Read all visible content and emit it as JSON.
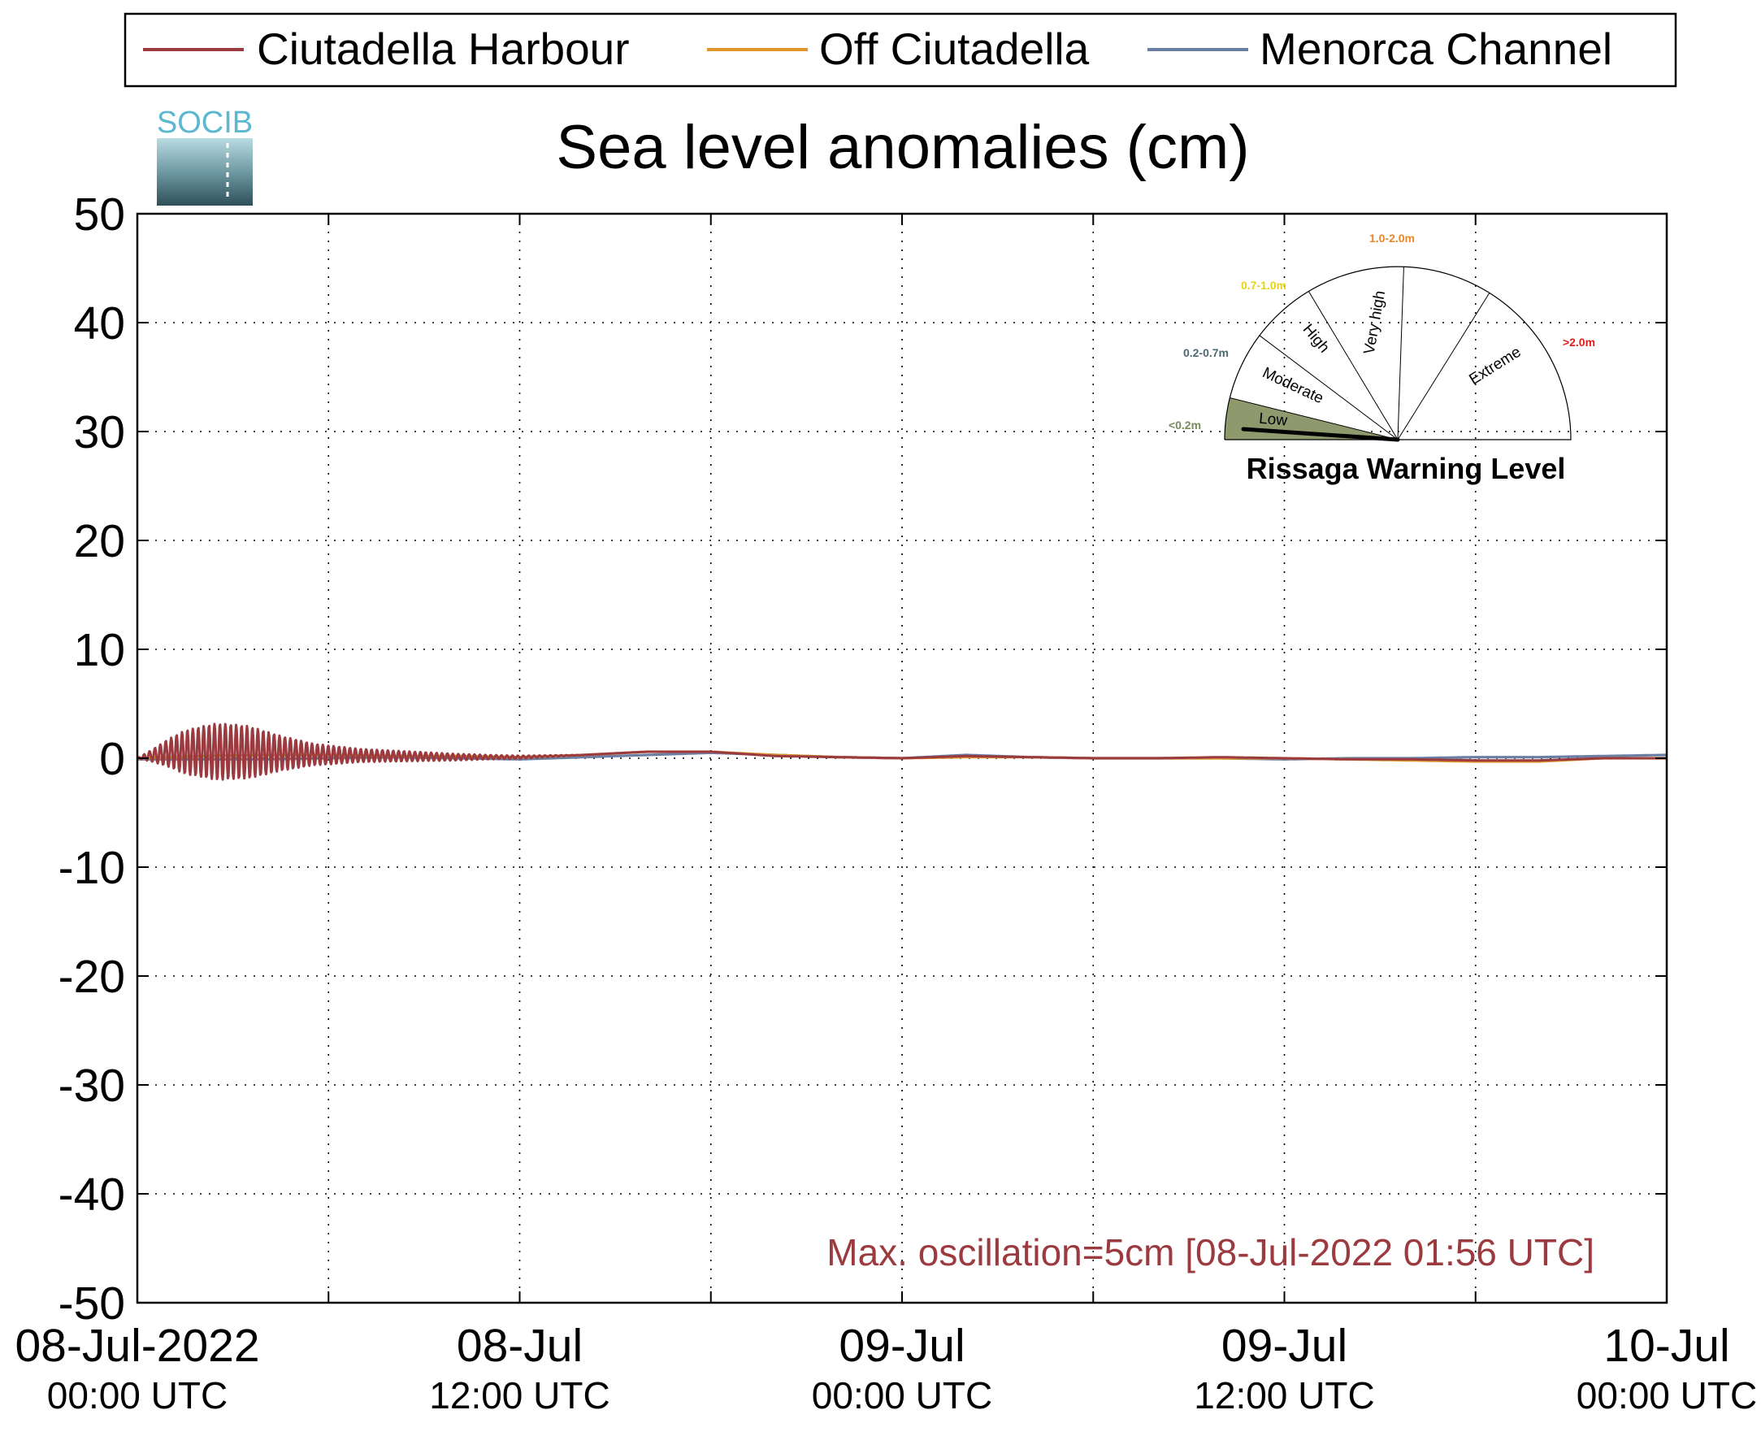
{
  "chart_data": {
    "type": "line",
    "title": "Sea level anomalies (cm)",
    "xlabel": "",
    "ylabel": "",
    "ylim": [
      -50,
      50
    ],
    "y_ticks": [
      50,
      40,
      30,
      20,
      10,
      0,
      -10,
      -20,
      -30,
      -40,
      -50
    ],
    "x_range": [
      "2022-07-08 00:00",
      "2022-07-10 00:00"
    ],
    "x_tick_labels": [
      {
        "date": "08-Jul-2022",
        "time": "00:00 UTC"
      },
      {
        "date": "08-Jul",
        "time": "12:00 UTC"
      },
      {
        "date": "09-Jul",
        "time": "00:00 UTC"
      },
      {
        "date": "09-Jul",
        "time": "12:00 UTC"
      },
      {
        "date": "10-Jul",
        "time": "00:00 UTC"
      }
    ],
    "grid": true,
    "legend_position": "top",
    "series": [
      {
        "name": "Ciutadella Harbour",
        "color": "#9b3a3f",
        "x_hours": [
          0,
          1,
          2,
          3,
          4,
          5,
          6,
          8,
          10,
          12,
          14,
          16,
          18,
          20,
          22,
          24,
          26,
          28,
          30,
          32,
          34,
          36,
          38,
          40,
          42,
          44,
          46,
          48
        ],
        "y": [
          0.0,
          0.5,
          0.6,
          0.6,
          0.5,
          0.4,
          0.3,
          0.2,
          0.1,
          0.1,
          0.3,
          0.6,
          0.6,
          0.2,
          0.1,
          0.0,
          0.2,
          0.1,
          0.0,
          0.0,
          0.1,
          0.0,
          -0.1,
          -0.1,
          -0.2,
          -0.2,
          0.0,
          0.0
        ],
        "oscillation_envelope": [
          {
            "hour": 0.5,
            "amp": 0.6
          },
          {
            "hour": 1.5,
            "amp": 2.0
          },
          {
            "hour": 2.5,
            "amp": 2.6
          },
          {
            "hour": 3.5,
            "amp": 2.4
          },
          {
            "hour": 4.5,
            "amp": 1.6
          },
          {
            "hour": 5.5,
            "amp": 1.0
          },
          {
            "hour": 7.0,
            "amp": 0.6
          },
          {
            "hour": 9.0,
            "amp": 0.4
          },
          {
            "hour": 11.0,
            "amp": 0.2
          }
        ]
      },
      {
        "name": "Off Ciutadella",
        "color": "#e0962a",
        "x_hours": [
          0,
          2,
          4,
          6,
          8,
          10,
          12,
          14,
          16,
          18,
          20,
          22,
          24,
          26,
          28,
          30,
          32,
          34,
          36,
          38,
          40,
          42,
          44,
          46,
          48
        ],
        "y": [
          0.0,
          0.2,
          0.3,
          0.3,
          0.2,
          0.2,
          0.1,
          0.3,
          0.6,
          0.6,
          0.3,
          0.1,
          0.0,
          0.1,
          0.1,
          0.0,
          0.0,
          0.0,
          0.0,
          -0.1,
          -0.2,
          -0.3,
          -0.3,
          0.0,
          0.0
        ]
      },
      {
        "name": "Menorca Channel",
        "color": "#6a7fa3",
        "x_hours": [
          0,
          2,
          4,
          6,
          8,
          10,
          12,
          14,
          16,
          18,
          20,
          22,
          24,
          26,
          28,
          30,
          32,
          34,
          36,
          38,
          40,
          42,
          44,
          46,
          48
        ],
        "y": [
          -0.1,
          -0.1,
          -0.1,
          0.0,
          0.1,
          0.0,
          -0.1,
          0.1,
          0.3,
          0.5,
          0.3,
          0.1,
          0.0,
          0.3,
          0.1,
          0.0,
          0.0,
          0.0,
          -0.1,
          0.0,
          0.0,
          0.1,
          0.1,
          0.2,
          0.3
        ]
      }
    ],
    "annotation": "Max. oscillation=5cm [08-Jul-2022 01:56 UTC]",
    "annotation_color": "#9b3a3f"
  },
  "logo": {
    "text": "SOCIB",
    "color": "#5db7cf"
  },
  "gauge": {
    "title": "Rissaga Warning Level",
    "sectors": [
      {
        "label": "Low",
        "range": "<0.2m",
        "range_color": "#7a8a5a",
        "fill": "#8e9a6e"
      },
      {
        "label": "Moderate",
        "range": "0.2-0.7m",
        "range_color": "#4d6a72",
        "fill": "#ffffff"
      },
      {
        "label": "High",
        "range": "0.7-1.0m",
        "range_color": "#e8d21a",
        "fill": "#ffffff"
      },
      {
        "label": "Very high",
        "range": "1.0-2.0m",
        "range_color": "#e8882a",
        "fill": "#ffffff"
      },
      {
        "label": "Extreme",
        "range": ">2.0m",
        "range_color": "#e02020",
        "fill": "#ffffff"
      }
    ],
    "current_level": "Low"
  }
}
